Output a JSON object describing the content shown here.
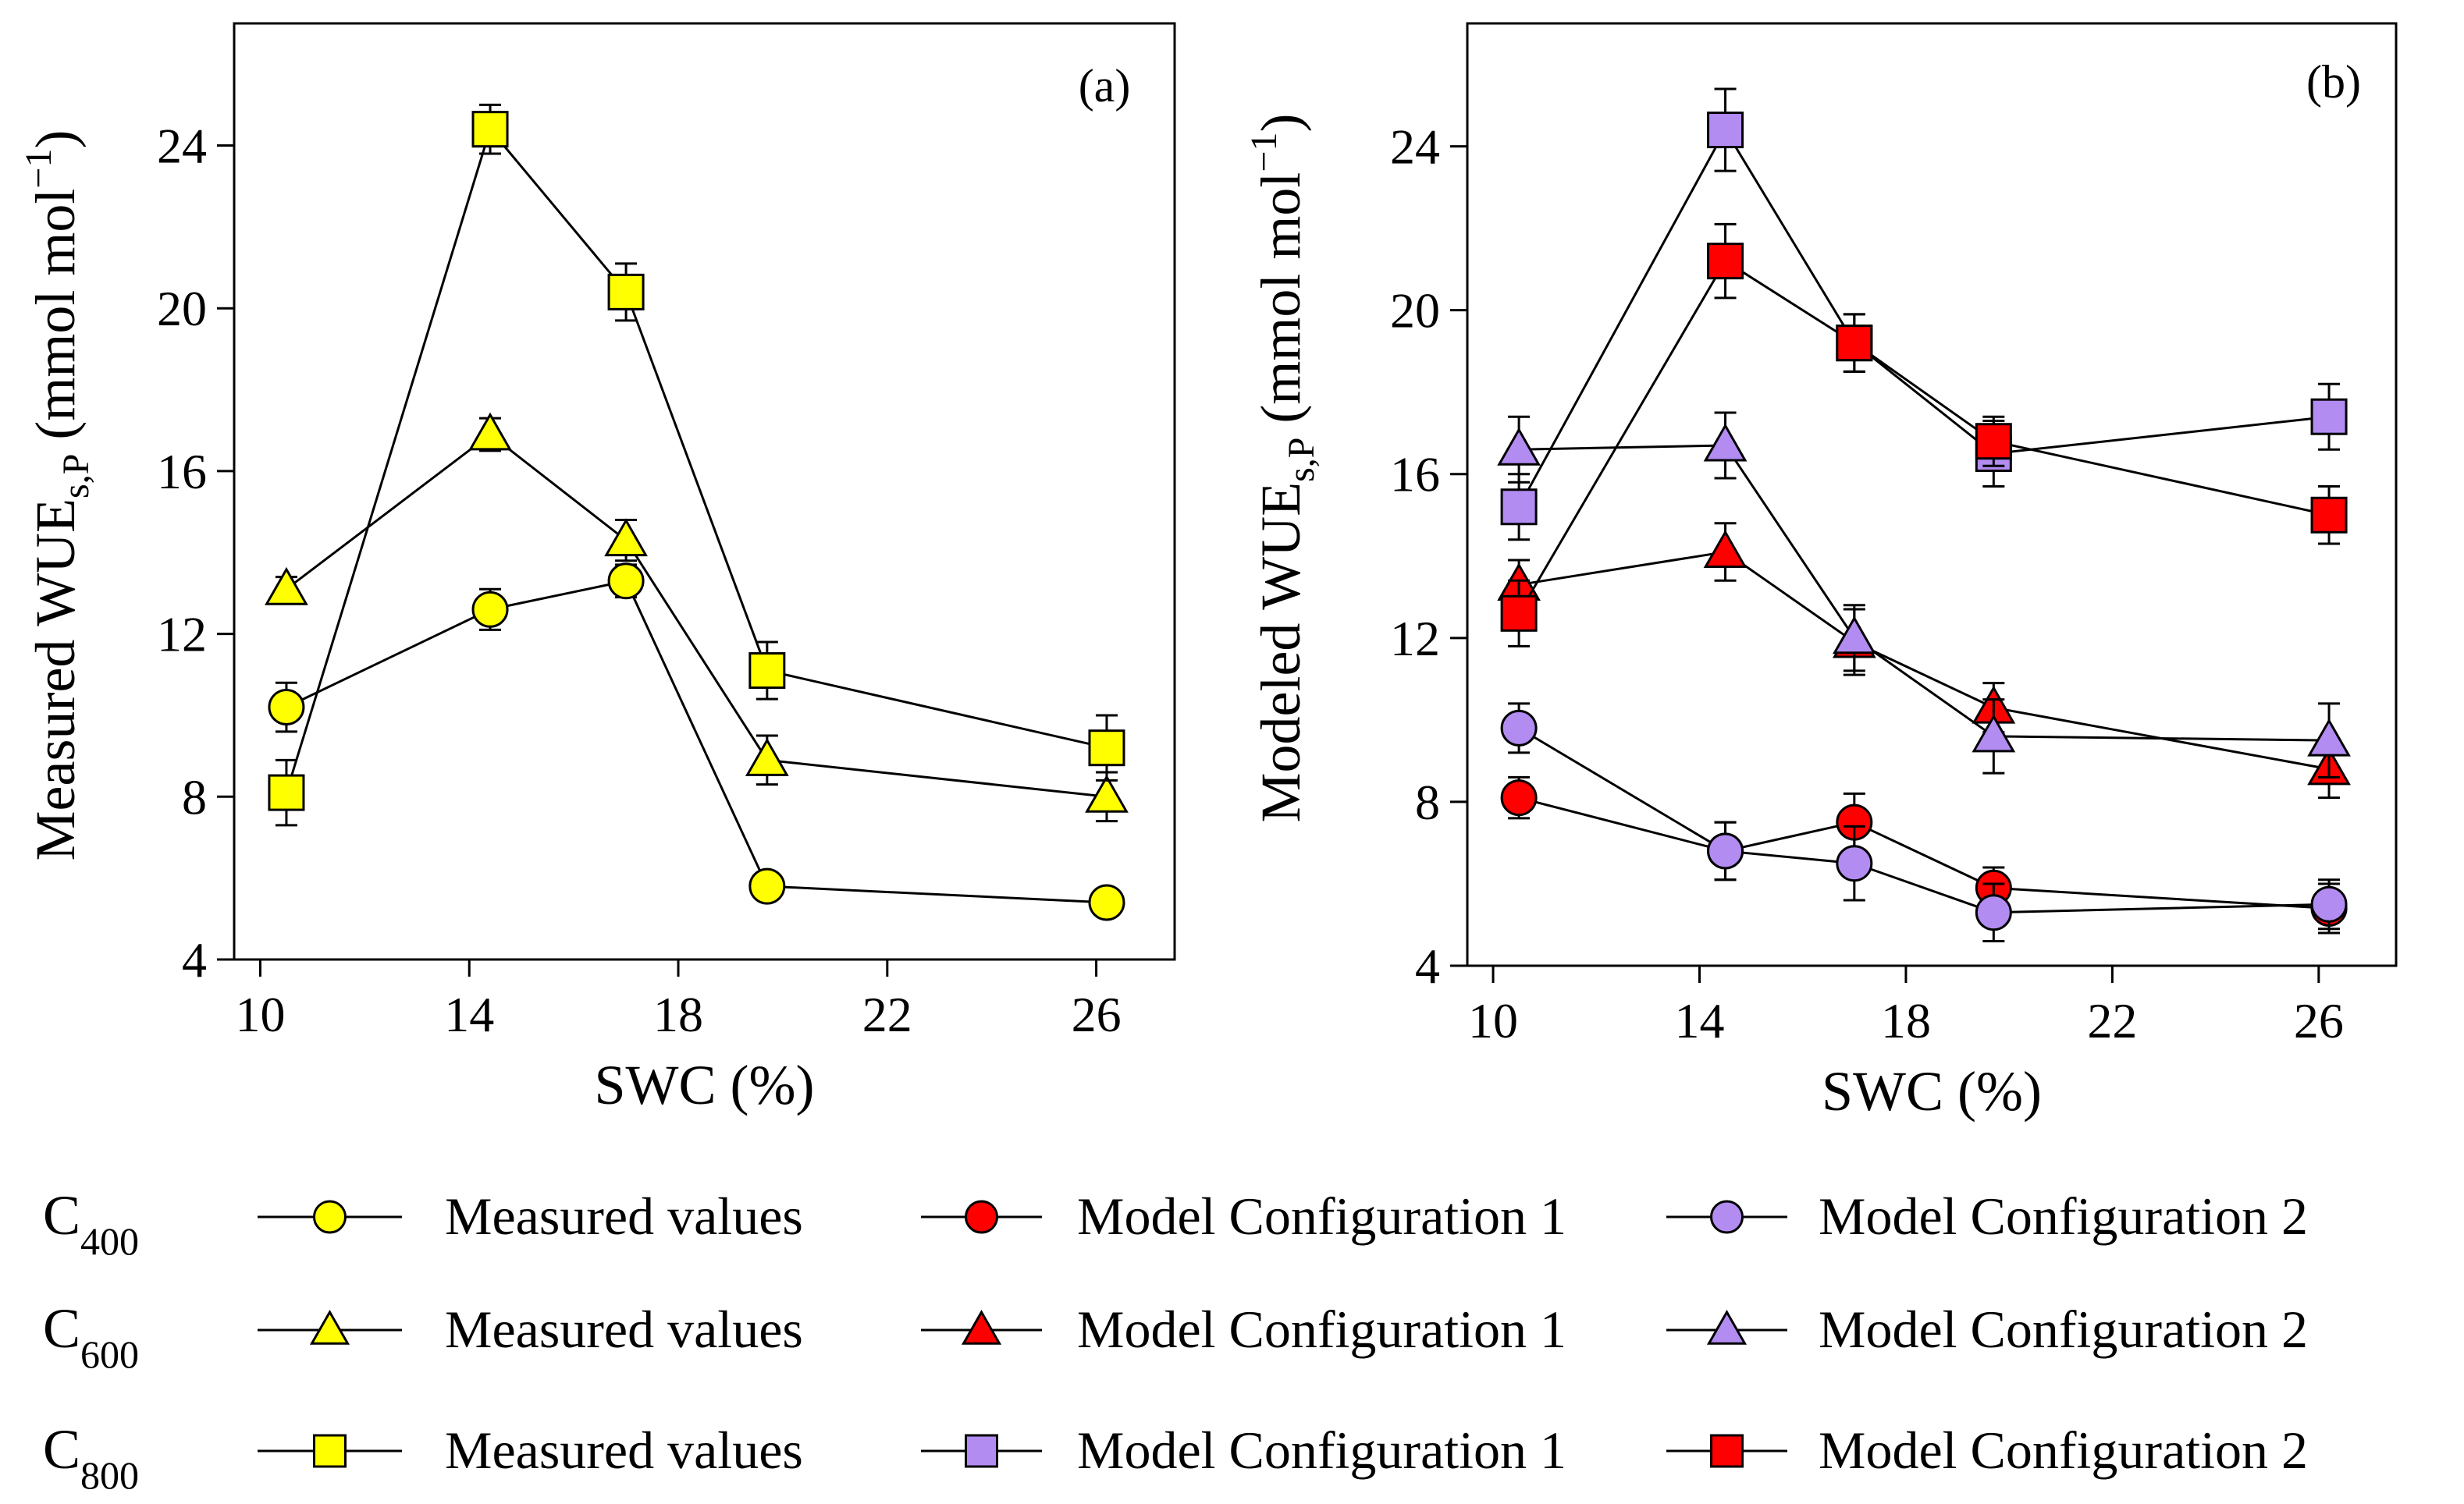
{
  "chart_data": [
    {
      "type": "line",
      "panel_label": "(a)",
      "xlabel": "SWC (%)",
      "ylabel": {
        "main": "Measured WUE",
        "sub": "s,P",
        "unit_open": " (mmol  mol",
        "unit_sup": "−1",
        "unit_close": ")"
      },
      "xlim": [
        9.5,
        27.5
      ],
      "ylim": [
        4,
        27
      ],
      "xticks": [
        10,
        14,
        18,
        22,
        26
      ],
      "yticks": [
        4,
        8,
        12,
        16,
        20,
        24
      ],
      "x": [
        10.5,
        14.4,
        17,
        19.7,
        26.2
      ],
      "series": [
        {
          "name": "C400 Measured values",
          "marker": "circle",
          "color": "#ffff00",
          "values": [
            10.2,
            12.6,
            13.3,
            5.8,
            5.4
          ],
          "errors": [
            0.6,
            0.5,
            0.4,
            0.3,
            0.2
          ]
        },
        {
          "name": "C600 Measured values",
          "marker": "triangle",
          "color": "#ffff00",
          "values": [
            13.1,
            16.9,
            14.3,
            8.9,
            8.0
          ],
          "errors": [
            0.3,
            0.4,
            0.5,
            0.6,
            0.6
          ]
        },
        {
          "name": "C800 Measured values",
          "marker": "square",
          "color": "#ffff00",
          "values": [
            8.1,
            24.4,
            20.4,
            11.1,
            9.2
          ],
          "errors": [
            0.8,
            0.6,
            0.7,
            0.7,
            0.8
          ]
        }
      ]
    },
    {
      "type": "line",
      "panel_label": "(b)",
      "xlabel": "SWC (%)",
      "ylabel": {
        "main": "Modeled WUE",
        "sub": "s,P",
        "unit_open": " (mmol  mol",
        "unit_sup": "−1",
        "unit_close": ")"
      },
      "xlim": [
        9.5,
        27.5
      ],
      "ylim": [
        4,
        27
      ],
      "xticks": [
        10,
        14,
        18,
        22,
        26
      ],
      "yticks": [
        4,
        8,
        12,
        16,
        20,
        24
      ],
      "x": [
        10.5,
        14.5,
        17,
        19.7,
        26.2
      ],
      "series": [
        {
          "name": "C400 Model Configuration 1",
          "marker": "circle",
          "color": "#ff0000",
          "values": [
            8.1,
            6.8,
            7.5,
            5.9,
            5.4
          ],
          "errors": [
            0.5,
            0.7,
            0.7,
            0.5,
            0.6
          ]
        },
        {
          "name": "C400 Model Configuration 2",
          "marker": "circle",
          "color": "#b38cf2",
          "values": [
            9.8,
            6.8,
            6.5,
            5.3,
            5.5
          ],
          "errors": [
            0.6,
            0.7,
            0.9,
            0.7,
            0.6
          ]
        },
        {
          "name": "C600 Model Configuration 1",
          "marker": "triangle",
          "color": "#ff0000",
          "values": [
            13.3,
            14.1,
            11.9,
            10.3,
            8.8
          ],
          "errors": [
            0.6,
            0.7,
            0.8,
            0.6,
            0.7
          ]
        },
        {
          "name": "C600 Model Configuration 2",
          "marker": "triangle",
          "color": "#b38cf2",
          "values": [
            16.6,
            16.7,
            12.0,
            9.6,
            9.5
          ],
          "errors": [
            0.8,
            0.8,
            0.8,
            0.9,
            0.9
          ]
        },
        {
          "name": "C800 Model Configuration 1",
          "marker": "square",
          "color": "#b38cf2",
          "values": [
            15.2,
            24.4,
            19.2,
            16.5,
            17.4
          ],
          "errors": [
            0.8,
            1.0,
            0.7,
            0.8,
            0.8
          ]
        },
        {
          "name": "C800 Model Configuration 2",
          "marker": "square",
          "color": "#ff0000",
          "values": [
            12.6,
            21.2,
            19.2,
            16.8,
            15.0
          ],
          "errors": [
            0.8,
            0.9,
            0.7,
            0.6,
            0.7
          ]
        }
      ]
    }
  ],
  "legend": {
    "rows": [
      {
        "label_main": "C",
        "label_sub": "400",
        "items": [
          {
            "text": "Measured values",
            "marker": "circle",
            "color": "#ffff00"
          },
          {
            "text": "Model Configuration 1",
            "marker": "circle",
            "color": "#ff0000"
          },
          {
            "text": "Model Configuration 2",
            "marker": "circle",
            "color": "#b38cf2"
          }
        ]
      },
      {
        "label_main": "C",
        "label_sub": "600",
        "items": [
          {
            "text": "Measured values",
            "marker": "triangle",
            "color": "#ffff00"
          },
          {
            "text": "Model Configuration 1",
            "marker": "triangle",
            "color": "#ff0000"
          },
          {
            "text": "Model Configuration 2",
            "marker": "triangle",
            "color": "#b38cf2"
          }
        ]
      },
      {
        "label_main": "C",
        "label_sub": "800",
        "items": [
          {
            "text": "Measured values",
            "marker": "square",
            "color": "#ffff00"
          },
          {
            "text": "Model Configuration 1",
            "marker": "square",
            "color": "#b38cf2"
          },
          {
            "text": "Model Configuration 2",
            "marker": "square",
            "color": "#ff0000"
          }
        ]
      }
    ]
  }
}
